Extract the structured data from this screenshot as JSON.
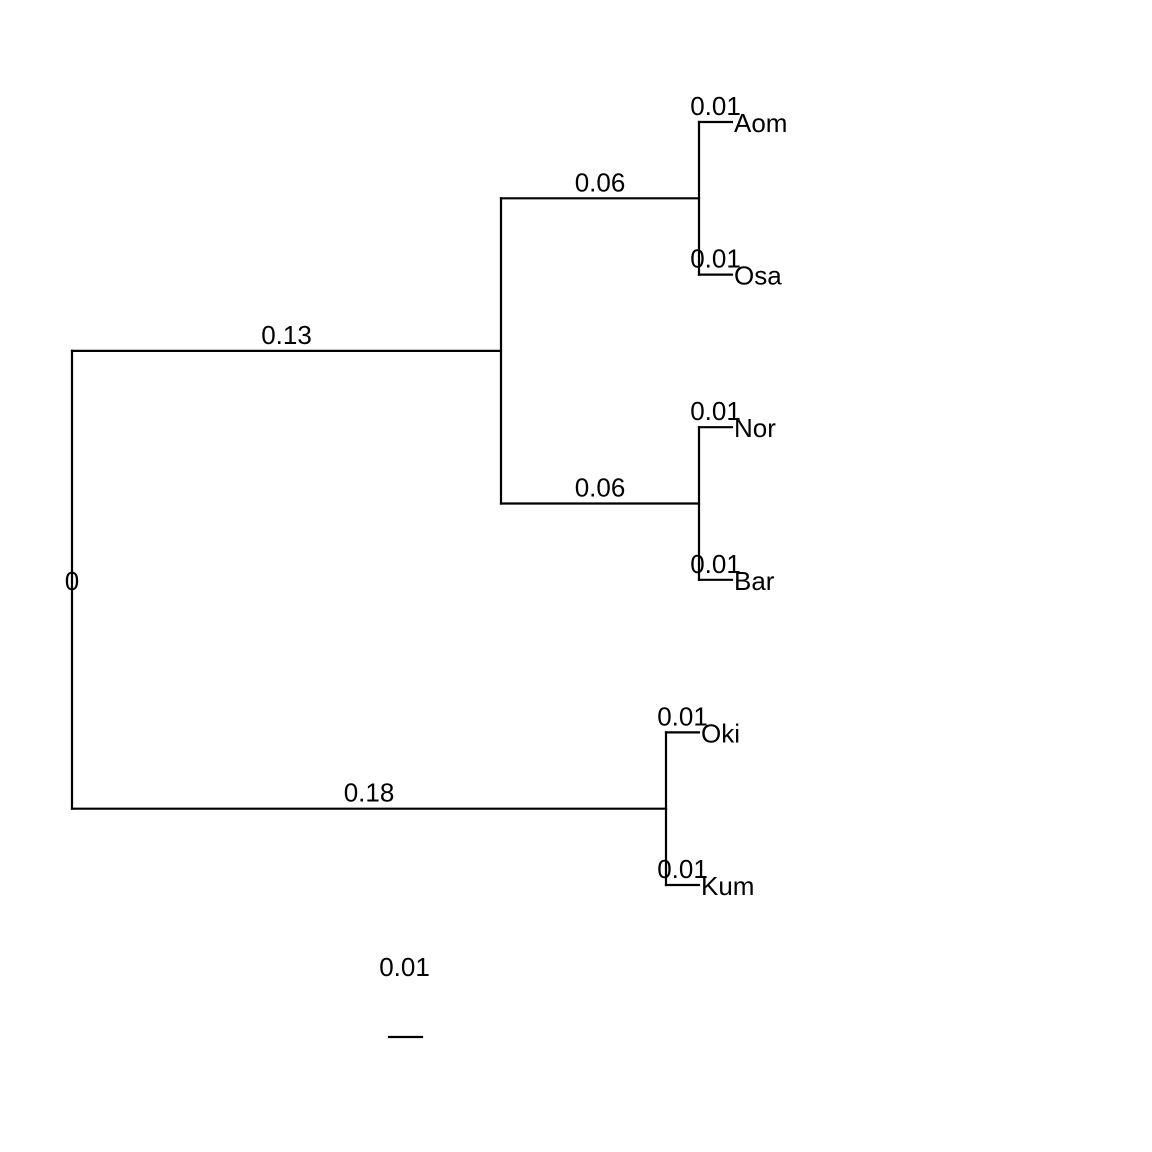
{
  "tree": {
    "root_label": "0",
    "nodes": [
      {
        "id": "root",
        "parent": null,
        "length": 0,
        "label": "0"
      },
      {
        "id": "n1",
        "parent": "root",
        "length": 0.13,
        "label": "0.13"
      },
      {
        "id": "n2",
        "parent": "n1",
        "length": 0.06,
        "label": "0.06"
      },
      {
        "id": "n3",
        "parent": "n1",
        "length": 0.06,
        "label": "0.06"
      },
      {
        "id": "n4",
        "parent": "root",
        "length": 0.18,
        "label": "0.18"
      },
      {
        "id": "Aom",
        "parent": "n2",
        "length": 0.01,
        "label": "0.01",
        "tip": "Aom"
      },
      {
        "id": "Osa",
        "parent": "n2",
        "length": 0.01,
        "label": "0.01",
        "tip": "Osa"
      },
      {
        "id": "Nor",
        "parent": "n3",
        "length": 0.01,
        "label": "0.01",
        "tip": "Nor"
      },
      {
        "id": "Bar",
        "parent": "n3",
        "length": 0.01,
        "label": "0.01",
        "tip": "Bar"
      },
      {
        "id": "Oki",
        "parent": "n4",
        "length": 0.01,
        "label": "0.01",
        "tip": "Oki"
      },
      {
        "id": "Kum",
        "parent": "n4",
        "length": 0.01,
        "label": "0.01",
        "tip": "Kum"
      }
    ],
    "tip_order": [
      "Aom",
      "Osa",
      "Nor",
      "Bar",
      "Oki",
      "Kum"
    ]
  },
  "scale_bar": {
    "length": 0.01,
    "label": "0.01"
  },
  "colors": {
    "line": "#000000",
    "background": "#ffffff"
  }
}
